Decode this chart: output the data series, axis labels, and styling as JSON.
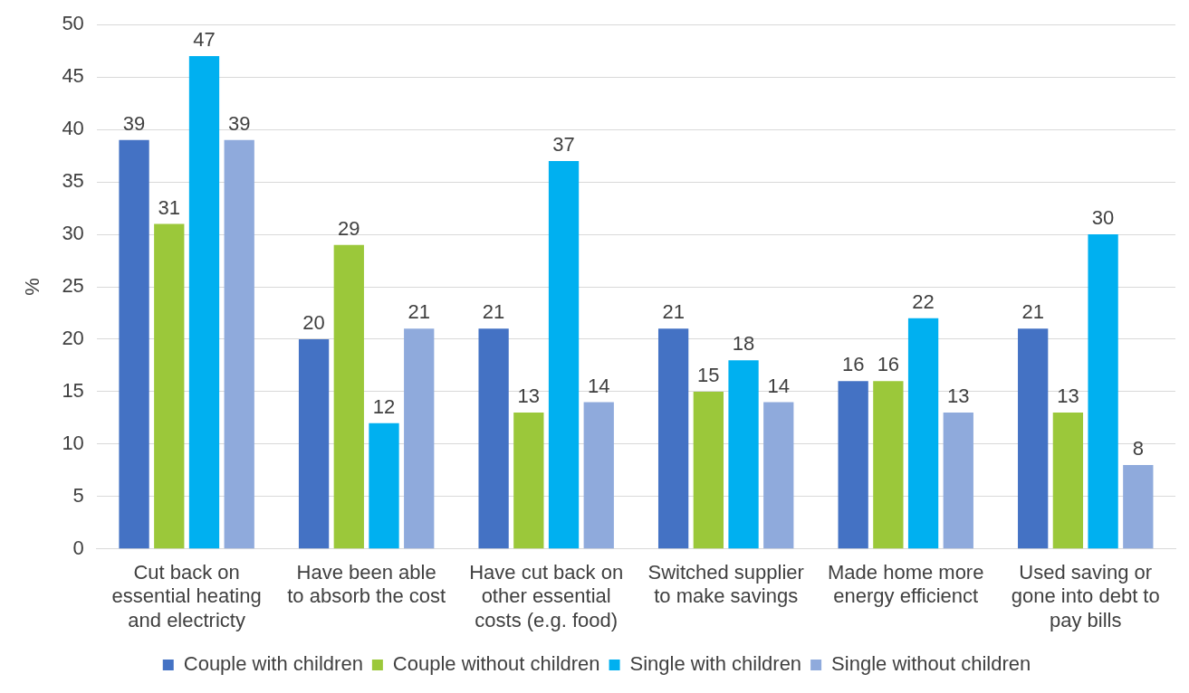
{
  "chart_data": {
    "type": "bar",
    "ylabel": "%",
    "categories": [
      "Cut back on essential heating and electricty",
      "Have been able to absorb the cost",
      "Have cut back on other essential costs (e.g. food)",
      "Switched supplier to make savings",
      "Made home more energy efficienct",
      "Used saving or gone into debt to pay bills"
    ],
    "series": [
      {
        "name": "Couple with children",
        "color": "#4472c4",
        "values": [
          39,
          20,
          21,
          21,
          16,
          21
        ]
      },
      {
        "name": "Couple without children",
        "color": "#9bc83a",
        "values": [
          31,
          29,
          13,
          15,
          16,
          13
        ]
      },
      {
        "name": "Single with children",
        "color": "#00b0f0",
        "values": [
          47,
          12,
          37,
          18,
          22,
          30
        ]
      },
      {
        "name": "Single without children",
        "color": "#8faadc",
        "values": [
          39,
          21,
          14,
          14,
          13,
          8
        ]
      }
    ],
    "ylim": [
      0,
      50
    ],
    "yticks": [
      0,
      5,
      10,
      15,
      20,
      25,
      30,
      35,
      40,
      45,
      50
    ],
    "grid": "y",
    "legend": "bottom",
    "data_labels": true
  }
}
